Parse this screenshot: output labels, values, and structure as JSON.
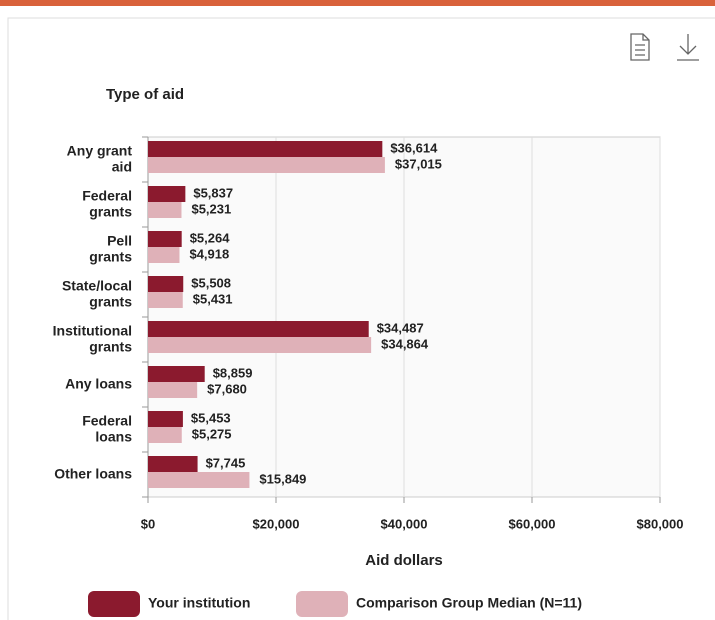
{
  "chart_data": {
    "type": "bar",
    "orientation": "horizontal",
    "title": "Type of aid",
    "x_label": "Aid dollars",
    "categories": [
      "Any grant\naid",
      "Federal\ngrants",
      "Pell\ngrants",
      "State/local\ngrants",
      "Institutional\ngrants",
      "Any loans",
      "Federal\nloans",
      "Other loans"
    ],
    "series": [
      {
        "name": "Your institution",
        "color": "#8b1a2e",
        "values": [
          36614,
          5837,
          5264,
          5508,
          34487,
          8859,
          5453,
          7745
        ],
        "value_labels": [
          "$36,614",
          "$5,837",
          "$5,264",
          "$5,508",
          "$34,487",
          "$8,859",
          "$5,453",
          "$7,745"
        ]
      },
      {
        "name": "Comparison Group Median (N=11)",
        "color": "#dfb1b8",
        "values": [
          37015,
          5231,
          4918,
          5431,
          34864,
          7680,
          5275,
          15849
        ],
        "value_labels": [
          "$37,015",
          "$5,231",
          "$4,918",
          "$5,431",
          "$34,864",
          "$7,680",
          "$5,275",
          "$15,849"
        ]
      }
    ],
    "xlim": [
      0,
      80000
    ],
    "xticks": [
      {
        "value": 0,
        "label": "$0"
      },
      {
        "value": 20000,
        "label": "$20,000"
      },
      {
        "value": 40000,
        "label": "$40,000"
      },
      {
        "value": 60000,
        "label": "$60,000"
      },
      {
        "value": 80000,
        "label": "$80,000"
      }
    ],
    "grid": true,
    "legend": "bottom"
  }
}
